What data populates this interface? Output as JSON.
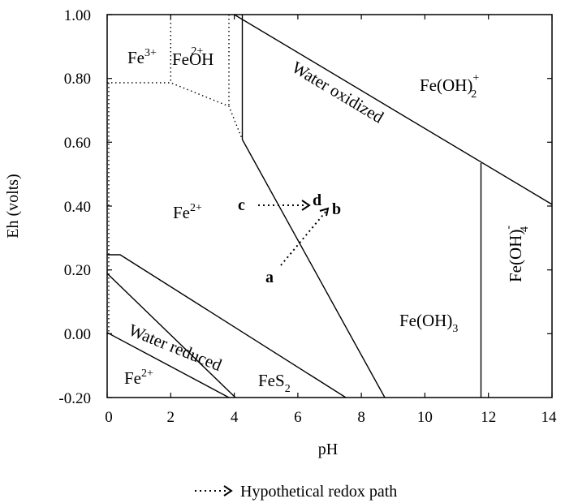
{
  "axes": {
    "x_label": "pH",
    "y_label": "Eh (volts)",
    "x_ticks": [
      "0",
      "2",
      "4",
      "6",
      "8",
      "10",
      "12",
      "14"
    ],
    "y_ticks": [
      "1.00",
      "0.80",
      "0.60",
      "0.40",
      "0.20",
      "0.00",
      "-0.20"
    ]
  },
  "regions": {
    "fe3": {
      "base": "Fe",
      "sup": "3+"
    },
    "feoh2": {
      "base": "FeOH",
      "sup": "2+"
    },
    "fe2_upper": {
      "base": "Fe",
      "sup": "2+"
    },
    "fe2_lower": {
      "base": "Fe",
      "sup": "2+"
    },
    "feoh2plus": {
      "base": "Fe(OH)",
      "sup": "+",
      "sub": "2"
    },
    "feoh3": {
      "base": "Fe(OH)",
      "sub": "3"
    },
    "feoh4": {
      "base": "Fe(OH)",
      "sup": "-",
      "sub": "4"
    },
    "fes2": {
      "base": "FeS",
      "sub": "2"
    },
    "water_oxidized": "Water oxidized",
    "water_reduced": "Water reduced"
  },
  "path_points": {
    "a": "a",
    "b": "b",
    "c": "c",
    "d": "d"
  },
  "legend": {
    "arrow": "·····>",
    "label": "Hypothetical redox path"
  }
}
